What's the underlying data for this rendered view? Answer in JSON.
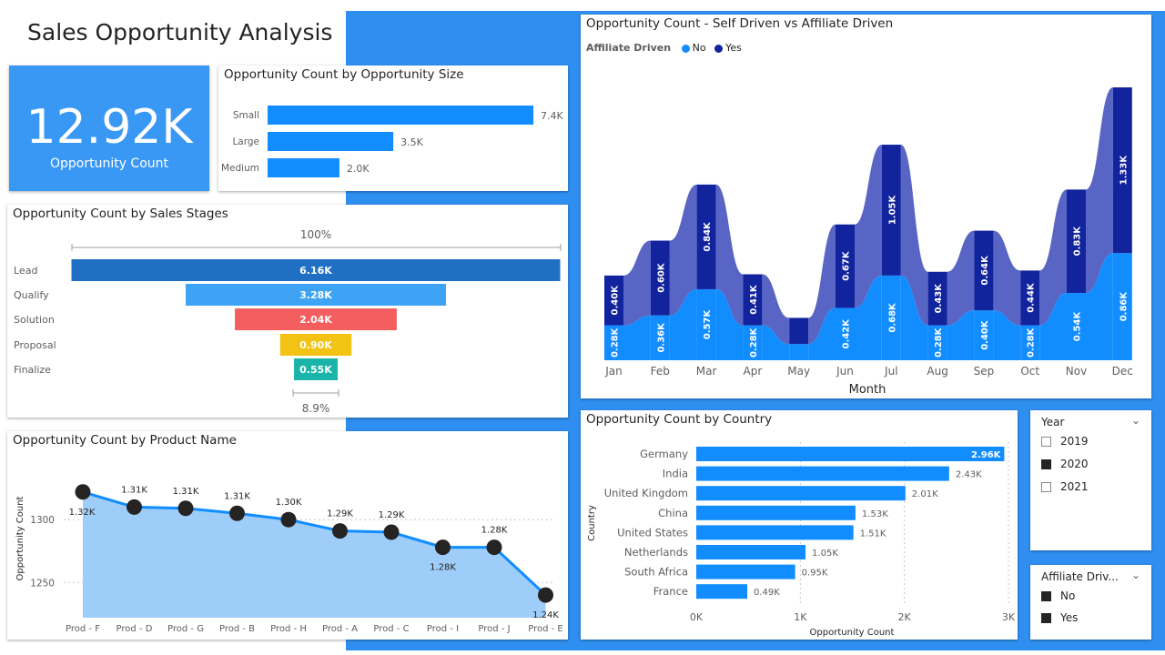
{
  "header": {
    "title": "Sales Opportunity Analysis"
  },
  "kpi": {
    "value": "12.92K",
    "label": "Opportunity Count"
  },
  "colors": {
    "primary": "#118dff",
    "dark_navy": "#12239e",
    "band": "#5965c4",
    "lead": "#1f6fc5",
    "qualify": "#3ea3f5",
    "solution": "#f45e5e",
    "proposal": "#f2c313",
    "finalize": "#1ab5a8",
    "kpi_bg": "#3a98f5",
    "canvas_bg": "#2f8ff0"
  },
  "chart_data": [
    {
      "id": "size",
      "type": "bar",
      "orientation": "horizontal",
      "title": "Opportunity Count by Opportunity Size",
      "categories": [
        "Small",
        "Large",
        "Medium"
      ],
      "values": [
        7400,
        3500,
        2000
      ],
      "labels": [
        "7.4K",
        "3.5K",
        "2.0K"
      ],
      "xlim": [
        0,
        7400
      ]
    },
    {
      "id": "stages",
      "type": "funnel",
      "title": "Opportunity Count by Sales Stages",
      "categories": [
        "Lead",
        "Qualify",
        "Solution",
        "Proposal",
        "Finalize"
      ],
      "values": [
        6160,
        3280,
        2040,
        900,
        550
      ],
      "labels": [
        "6.16K",
        "3.28K",
        "2.04K",
        "0.90K",
        "0.55K"
      ],
      "top_percent": "100%",
      "bottom_percent": "8.9%"
    },
    {
      "id": "product",
      "type": "area",
      "title": "Opportunity Count by Product Name",
      "categories": [
        "Prod - F",
        "Prod - D",
        "Prod - G",
        "Prod - B",
        "Prod - H",
        "Prod - A",
        "Prod - C",
        "Prod - I",
        "Prod - J",
        "Prod - E"
      ],
      "values": [
        1322,
        1310,
        1309,
        1305,
        1300,
        1291,
        1290,
        1278,
        1278,
        1240
      ],
      "labels": [
        "1.32K",
        "1.31K",
        "1.31K",
        "1.31K",
        "1.30K",
        "1.29K",
        "1.29K",
        "1.28K",
        "1.28K",
        "1.24K"
      ],
      "ylabel": "Opportunity Count",
      "yticks": [
        1250,
        1300
      ],
      "ylim": [
        1222,
        1345
      ]
    },
    {
      "id": "monthly",
      "type": "ribbon",
      "title": "Opportunity Count - Self Driven vs Affiliate Driven",
      "legend_title": "Affiliate Driven",
      "categories": [
        "Jan",
        "Feb",
        "Mar",
        "Apr",
        "May",
        "Jun",
        "Jul",
        "Aug",
        "Sep",
        "Oct",
        "Nov",
        "Dec"
      ],
      "xlabel": "Month",
      "series": [
        {
          "name": "No",
          "values": [
            280,
            360,
            570,
            280,
            130,
            420,
            680,
            280,
            400,
            280,
            540,
            860
          ],
          "labels": [
            "0.28K",
            "0.36K",
            "0.57K",
            "0.28K",
            "",
            "0.42K",
            "0.68K",
            "0.28K",
            "0.40K",
            "0.28K",
            "0.54K",
            "0.86K"
          ]
        },
        {
          "name": "Yes",
          "values": [
            400,
            600,
            840,
            410,
            210,
            670,
            1050,
            430,
            640,
            440,
            830,
            1330
          ],
          "labels": [
            "0.40K",
            "0.60K",
            "0.84K",
            "0.41K",
            "",
            "0.67K",
            "1.05K",
            "0.43K",
            "0.64K",
            "0.44K",
            "0.83K",
            "1.33K"
          ]
        }
      ],
      "ylim": [
        0,
        2300
      ]
    },
    {
      "id": "country",
      "type": "bar",
      "orientation": "horizontal",
      "title": "Opportunity Count by Country",
      "categories": [
        "Germany",
        "India",
        "United Kingdom",
        "China",
        "United States",
        "Netherlands",
        "South Africa",
        "France"
      ],
      "values": [
        2960,
        2430,
        2010,
        1530,
        1510,
        1050,
        950,
        490
      ],
      "labels": [
        "2.96K",
        "2.43K",
        "2.01K",
        "1.53K",
        "1.51K",
        "1.05K",
        "0.95K",
        "0.49K"
      ],
      "xlabel": "Opportunity Count",
      "ylabel": "Country",
      "xticks": [
        "0K",
        "1K",
        "2K",
        "3K"
      ],
      "xlim": [
        0,
        3000
      ]
    }
  ],
  "slicers": {
    "year": {
      "title": "Year",
      "items": [
        {
          "label": "2019",
          "checked": false
        },
        {
          "label": "2020",
          "checked": true
        },
        {
          "label": "2021",
          "checked": false
        }
      ]
    },
    "affiliate": {
      "title": "Affiliate Driv...",
      "items": [
        {
          "label": "No",
          "checked": true
        },
        {
          "label": "Yes",
          "checked": true
        }
      ]
    }
  }
}
